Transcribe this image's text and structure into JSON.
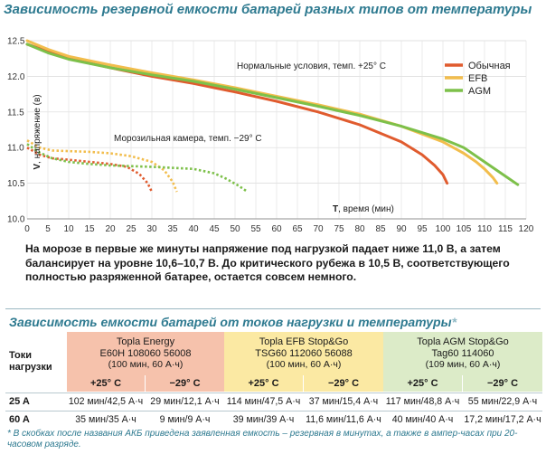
{
  "header": {
    "chart_title": "Зависимость резервной емкости батарей разных типов от температуры",
    "table_title": "Зависимость емкости батарей от токов нагрузки и температуры",
    "table_title_mark": "*"
  },
  "chart_data": {
    "type": "line",
    "title": "Зависимость резервной емкости батарей разных типов от температуры",
    "xlabel_bold": "T",
    "xlabel": ", время (мин)",
    "ylabel_bold": "V",
    "ylabel": ", напряжение (в)",
    "xlim": [
      0,
      120
    ],
    "ylim": [
      10.0,
      12.5
    ],
    "x_ticks": [
      "0",
      "5",
      "10",
      "15",
      "20",
      "25",
      "30",
      "35",
      "40",
      "45",
      "50",
      "55",
      "60",
      "65",
      "70",
      "75",
      "80",
      "85",
      "90",
      "95",
      "100",
      "105",
      "110",
      "115",
      "120"
    ],
    "x_tick_values": [
      0,
      5,
      10,
      15,
      20,
      25,
      30,
      35,
      40,
      45,
      50,
      55,
      60,
      65,
      70,
      75,
      80,
      85,
      90,
      95,
      100,
      105,
      110,
      115,
      120
    ],
    "y_ticks": [
      "10.0",
      "10.5",
      "11.0",
      "11.5",
      "12.0",
      "12.5"
    ],
    "y_tick_values": [
      10.0,
      10.5,
      11.0,
      11.5,
      12.0,
      12.5
    ],
    "legend": [
      {
        "name": "Обычная",
        "color": "#e05b2e"
      },
      {
        "name": "EFB",
        "color": "#f2bd4c"
      },
      {
        "name": "AGM",
        "color": "#7dc04a"
      }
    ],
    "annotations": {
      "normal": "Нормальные условия, темп. +25° С",
      "freezer": "Морозильная камера, темп. −29° С"
    },
    "series": [
      {
        "name": "Обычная +25",
        "group": "normal",
        "color": "#e05b2e",
        "dashed": false,
        "x": [
          0,
          5,
          10,
          20,
          30,
          40,
          50,
          60,
          70,
          80,
          90,
          95,
          98,
          100,
          101
        ],
        "y": [
          12.45,
          12.35,
          12.25,
          12.12,
          12.0,
          11.9,
          11.78,
          11.65,
          11.5,
          11.32,
          11.08,
          10.9,
          10.75,
          10.62,
          10.5
        ]
      },
      {
        "name": "EFB +25",
        "group": "normal",
        "color": "#f2bd4c",
        "dashed": false,
        "x": [
          0,
          5,
          10,
          20,
          30,
          40,
          50,
          60,
          70,
          80,
          90,
          100,
          105,
          108,
          110,
          112,
          113
        ],
        "y": [
          12.5,
          12.38,
          12.28,
          12.16,
          12.05,
          11.95,
          11.84,
          11.72,
          11.6,
          11.47,
          11.3,
          11.08,
          10.92,
          10.8,
          10.7,
          10.58,
          10.5
        ]
      },
      {
        "name": "AGM +25",
        "group": "normal",
        "color": "#7dc04a",
        "dashed": false,
        "x": [
          0,
          5,
          10,
          20,
          30,
          40,
          50,
          60,
          70,
          80,
          90,
          100,
          105,
          110,
          115,
          118
        ],
        "y": [
          12.45,
          12.33,
          12.24,
          12.12,
          12.02,
          11.93,
          11.82,
          11.7,
          11.58,
          11.45,
          11.3,
          11.12,
          11.0,
          10.8,
          10.6,
          10.48
        ]
      },
      {
        "name": "Обычная −29",
        "group": "freezer",
        "color": "#e05b2e",
        "dashed": true,
        "x": [
          0,
          3,
          6,
          10,
          15,
          20,
          24,
          27,
          29,
          30
        ],
        "y": [
          11.0,
          10.9,
          10.85,
          10.83,
          10.8,
          10.77,
          10.73,
          10.63,
          10.5,
          10.38
        ]
      },
      {
        "name": "EFB −29",
        "group": "freezer",
        "color": "#f2bd4c",
        "dashed": true,
        "x": [
          0,
          3,
          6,
          10,
          15,
          20,
          25,
          30,
          33,
          35,
          36
        ],
        "y": [
          11.1,
          11.0,
          10.96,
          10.95,
          10.94,
          10.92,
          10.88,
          10.8,
          10.68,
          10.52,
          10.38
        ]
      },
      {
        "name": "AGM −29",
        "group": "freezer",
        "color": "#7dc04a",
        "dashed": true,
        "x": [
          0,
          3,
          6,
          10,
          15,
          20,
          30,
          40,
          45,
          48,
          51,
          53
        ],
        "y": [
          11.05,
          10.93,
          10.85,
          10.8,
          10.77,
          10.75,
          10.73,
          10.7,
          10.64,
          10.56,
          10.46,
          10.38
        ]
      }
    ]
  },
  "paragraph": "На морозе в первые же минуты напряжение под нагрузкой падает ниже 11,0 В, а затем балансирует на уровне 10,6–10,7 В. До критического рубежа в 10,5 В, соответствующего полностью разряженной батарее, остается совсем немного.",
  "table": {
    "row_header": "Токи\nнагрузки",
    "groups": [
      {
        "name": "Topla Energy",
        "model": "E60H 108060 56008",
        "capacity": "(100 мин, 60 А·ч)",
        "color": "#f6c2ac"
      },
      {
        "name": "Topla EFB Stop&Go",
        "model": "TSG60 112060 56088",
        "capacity": "(100 мин, 60 А·ч)",
        "color": "#fbe9a3"
      },
      {
        "name": "Topla AGM Stop&Go",
        "model": "Tag60 114060",
        "capacity": "(109 мин, 60 А·ч)",
        "color": "#dcebc8"
      }
    ],
    "temps": [
      "+25° C",
      "−29° C",
      "+25° C",
      "−29° C",
      "+25° C",
      "−29° C"
    ],
    "rows": [
      {
        "label": "25 A",
        "values": [
          "102 мин/42,5 А·ч",
          "29 мин/12,1 А·ч",
          "114 мин/47,5 А·ч",
          "37 мин/15,4 А·ч",
          "117 мин/48,8 А·ч",
          "55 мин/22,9 А·ч"
        ]
      },
      {
        "label": "60 A",
        "values": [
          "35 мин/35 А·ч",
          "9 мин/9 А·ч",
          "39 мин/39 А·ч",
          "11,6 мин/11,6 А·ч",
          "40 мин/40 А·ч",
          "17,2 мин/17,2 А·ч"
        ]
      }
    ]
  },
  "footnote": "* В скобках после названия АКБ приведена заявленная емкость – резервная в минутах, а также в ампер-часах при 20-часовом разряде."
}
